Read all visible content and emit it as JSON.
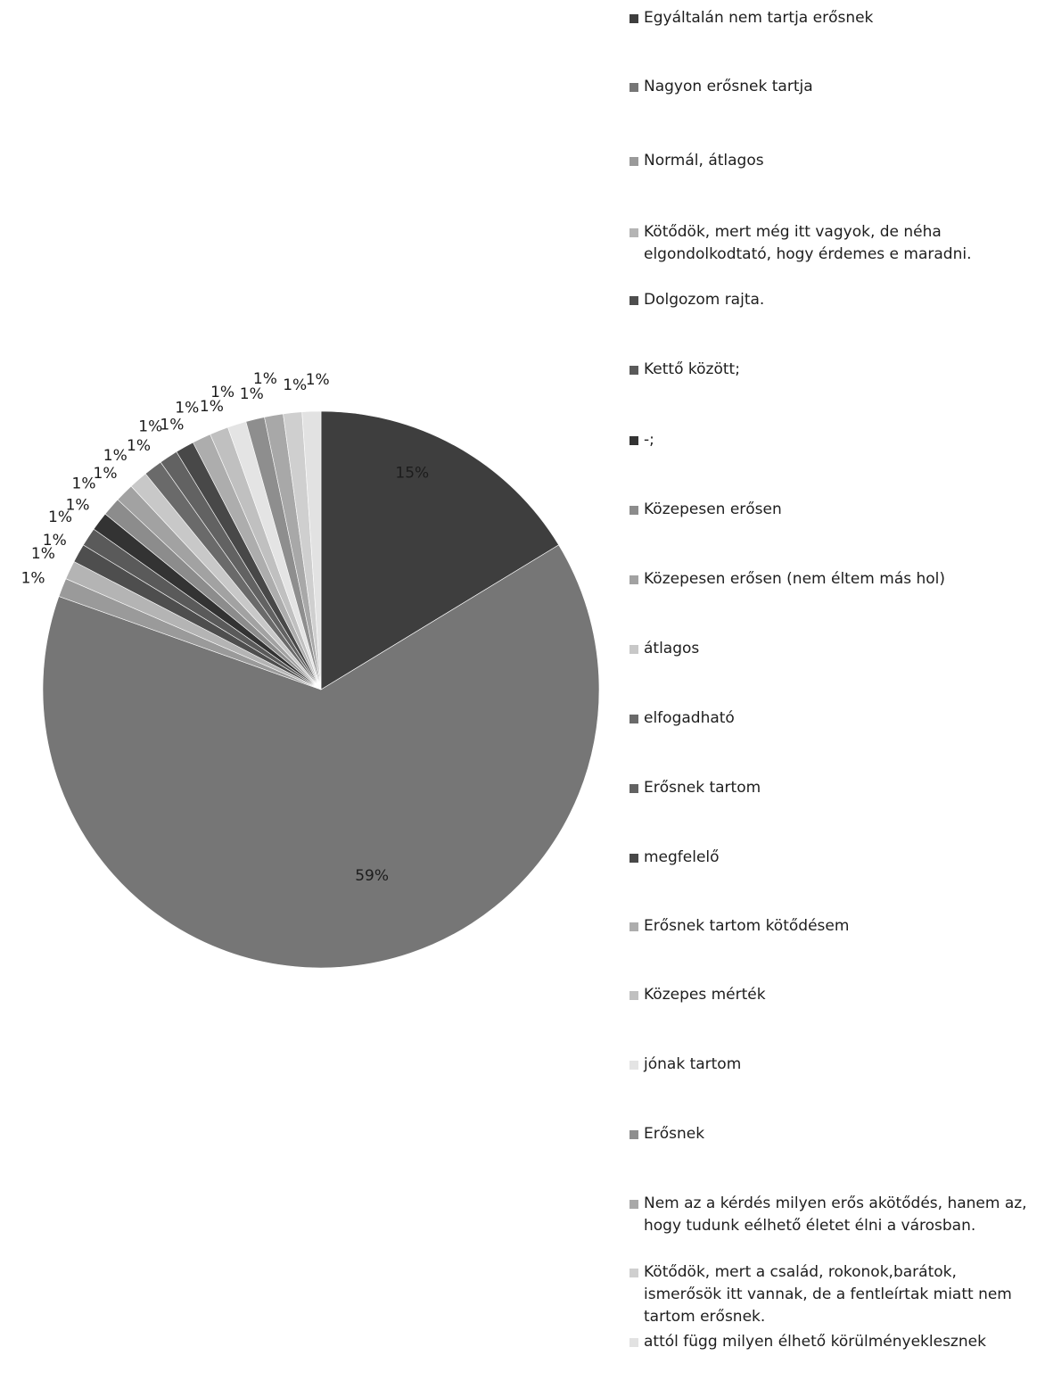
{
  "chart_data": {
    "type": "pie",
    "title": "",
    "start_angle_deg": 0,
    "direction": "clockwise",
    "legend_position": "right",
    "slices": [
      {
        "label": "Egyáltalán nem tartja erősnek",
        "value": 15,
        "display": "15%",
        "color": "#3e3e3e",
        "label_inside": true
      },
      {
        "label": "Nagyon erősnek tartja",
        "value": 59,
        "display": "59%",
        "color": "#767676",
        "label_inside": true
      },
      {
        "label": "Normál, átlagos",
        "value": 1,
        "display": "1%",
        "color": "#9a9a9a",
        "label_inside": false
      },
      {
        "label": "Kötődök, mert még itt vagyok, de néha elgondolkodtató, hogy érdemes e maradni.",
        "value": 1,
        "display": "1%",
        "color": "#b4b4b4",
        "label_inside": false
      },
      {
        "label": "Dolgozom rajta.",
        "value": 1,
        "display": "1%",
        "color": "#4e4e4e",
        "label_inside": false
      },
      {
        "label": "Kettő között;",
        "value": 1,
        "display": "1%",
        "color": "#5a5a5a",
        "label_inside": false
      },
      {
        "label": "-;",
        "value": 1,
        "display": "1%",
        "color": "#333333",
        "label_inside": false
      },
      {
        "label": "Közepesen erősen",
        "value": 1,
        "display": "1%",
        "color": "#8c8c8c",
        "label_inside": false
      },
      {
        "label": "Közepesen erősen (nem éltem más hol)",
        "value": 1,
        "display": "1%",
        "color": "#a2a2a2",
        "label_inside": false
      },
      {
        "label": "átlagos",
        "value": 1,
        "display": "1%",
        "color": "#c8c8c8",
        "label_inside": false
      },
      {
        "label": "elfogadható",
        "value": 1,
        "display": "1%",
        "color": "#6a6a6a",
        "label_inside": false
      },
      {
        "label": "Erősnek tartom",
        "value": 1,
        "display": "1%",
        "color": "#626262",
        "label_inside": false
      },
      {
        "label": "megfelelő",
        "value": 1,
        "display": "1%",
        "color": "#484848",
        "label_inside": false
      },
      {
        "label": "Erősnek tartom kötődésem",
        "value": 1,
        "display": "1%",
        "color": "#adadad",
        "label_inside": false
      },
      {
        "label": "Közepes mérték",
        "value": 1,
        "display": "1%",
        "color": "#c0c0c0",
        "label_inside": false
      },
      {
        "label": "jónak tartom",
        "value": 1,
        "display": "1%",
        "color": "#e4e4e4",
        "label_inside": false
      },
      {
        "label": "Erősnek",
        "value": 1,
        "display": "1%",
        "color": "#8e8e8e",
        "label_inside": false
      },
      {
        "label": "Nem az a kérdés milyen erős akötődés, hanem az,\nhogy tudunk eélhető életet élni a városban.",
        "value": 1,
        "display": "1%",
        "color": "#a8a8a8",
        "label_inside": false
      },
      {
        "label": "Kötődök, mert a család, rokonok,barátok,\nismerősök itt vannak, de a fentleírtak miatt nem\ntartom erősnek.",
        "value": 1,
        "display": "1%",
        "color": "#cfcfcf",
        "label_inside": false
      },
      {
        "label": "attól függ milyen élhető körülményeklesznek",
        "value": 1,
        "display": "1%",
        "color": "#e2e2e2",
        "label_inside": false
      }
    ]
  }
}
